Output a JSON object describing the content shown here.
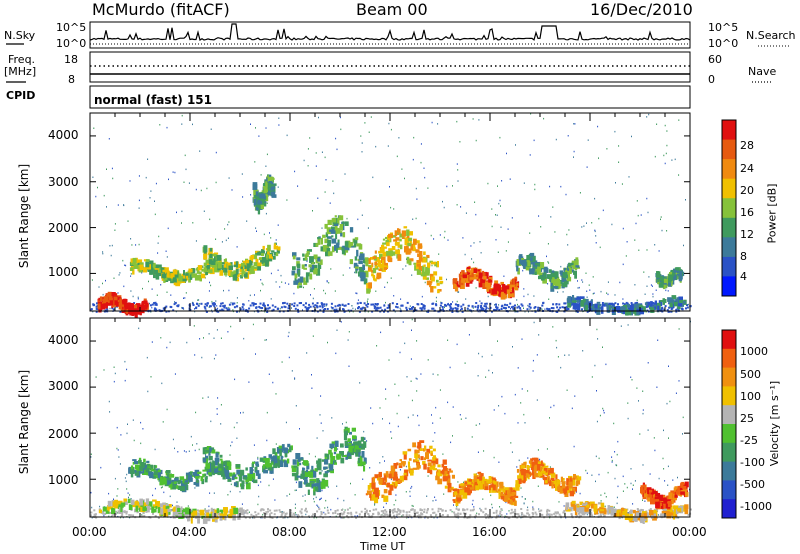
{
  "header": {
    "station": "McMurdo (fitACF)",
    "beam": "Beam 00",
    "date": "16/Dec/2010"
  },
  "aux": {
    "nsky_label": "N.Sky",
    "nsearch_label": "N.Search",
    "noise_ticks_left": [
      "10^5",
      "10^0"
    ],
    "noise_ticks_right": [
      "10^5",
      "10^0"
    ],
    "freq_label_1": "Freq.",
    "freq_label_2": "[MHz]",
    "freq_ticks": [
      "18",
      "8"
    ],
    "nave_label": "Nave",
    "nave_ticks": [
      "60",
      "0"
    ],
    "cpid_label": "CPID",
    "cpid_value": "normal (fast) 151"
  },
  "colors": {
    "power": [
      "#0018ff",
      "#2a52c6",
      "#3c7a9a",
      "#3f9a5e",
      "#86c23a",
      "#f0c000",
      "#f08a10",
      "#e65a10",
      "#e01010"
    ],
    "velocity": [
      "#2020d0",
      "#2a52c6",
      "#3c7a9a",
      "#3f9a5e",
      "#50c030",
      "#b4b4b4",
      "#f0c000",
      "#f09010",
      "#f06010",
      "#e01010"
    ],
    "ground": "#a0a0a0"
  },
  "chart_data": [
    {
      "type": "heatmap",
      "name": "power",
      "ylabel": "Slant Range [km]",
      "ylim": [
        180,
        4500
      ],
      "xlim_hours": [
        0,
        24
      ],
      "y_ticks": [
        "4000",
        "3000",
        "2000",
        "1000"
      ],
      "x_ticks": [
        "00:00",
        "04:00",
        "08:00",
        "12:00",
        "16:00",
        "20:00",
        "00:00"
      ],
      "colorbar_label": "Power [dB]",
      "colorbar_ticks": [
        "28",
        "24",
        "20",
        "16",
        "12",
        "8",
        "4"
      ],
      "echo_regions": [
        {
          "t0": 0.3,
          "t1": 2.2,
          "r0": 200,
          "r1": 550,
          "level": 8
        },
        {
          "t0": 1.5,
          "t1": 5.0,
          "r0": 900,
          "r1": 1300,
          "level": 4
        },
        {
          "t0": 4.5,
          "t1": 7.5,
          "r0": 1000,
          "r1": 1600,
          "level": 4
        },
        {
          "t0": 6.5,
          "t1": 7.3,
          "r0": 2500,
          "r1": 3100,
          "level": 3
        },
        {
          "t0": 8.0,
          "t1": 11.0,
          "r0": 900,
          "r1": 2100,
          "level": 3
        },
        {
          "t0": 11.0,
          "t1": 14.0,
          "r0": 800,
          "r1": 1900,
          "level": 5
        },
        {
          "t0": 14.5,
          "t1": 17.0,
          "r0": 600,
          "r1": 1100,
          "level": 7
        },
        {
          "t0": 17.0,
          "t1": 19.5,
          "r0": 800,
          "r1": 1400,
          "level": 3
        },
        {
          "t0": 19.0,
          "t1": 23.8,
          "r0": 200,
          "r1": 500,
          "level": 2
        },
        {
          "t0": 22.6,
          "t1": 23.6,
          "r0": 800,
          "r1": 1100,
          "level": 3
        }
      ]
    },
    {
      "type": "heatmap",
      "name": "velocity",
      "xlabel": "Time UT",
      "ylabel": "Slant Range [km]",
      "ylim": [
        180,
        4500
      ],
      "xlim_hours": [
        0,
        24
      ],
      "y_ticks": [
        "4000",
        "3000",
        "2000",
        "1000"
      ],
      "x_ticks": [
        "00:00",
        "04:00",
        "08:00",
        "12:00",
        "16:00",
        "20:00",
        "00:00"
      ],
      "colorbar_label": "Velocity [m s⁻¹]",
      "colorbar_ticks": [
        "1000",
        "500",
        "100",
        "25",
        "-25",
        "-100",
        "-500",
        "-1000"
      ],
      "echo_regions": [
        {
          "t0": 0.3,
          "t1": 6.0,
          "r0": 200,
          "r1": 550,
          "level": 5
        },
        {
          "t0": 1.5,
          "t1": 5.0,
          "r0": 900,
          "r1": 1400,
          "level": 3
        },
        {
          "t0": 4.5,
          "t1": 8.0,
          "r0": 1000,
          "r1": 1700,
          "level": 3
        },
        {
          "t0": 8.0,
          "t1": 11.0,
          "r0": 900,
          "r1": 2000,
          "level": 3
        },
        {
          "t0": 11.0,
          "t1": 14.5,
          "r0": 700,
          "r1": 1700,
          "level": 7
        },
        {
          "t0": 14.5,
          "t1": 17.0,
          "r0": 600,
          "r1": 1100,
          "level": 7
        },
        {
          "t0": 17.0,
          "t1": 19.5,
          "r0": 800,
          "r1": 1400,
          "level": 7
        },
        {
          "t0": 19.0,
          "t1": 23.8,
          "r0": 200,
          "r1": 500,
          "level": 6
        },
        {
          "t0": 22.0,
          "t1": 23.8,
          "r0": 500,
          "r1": 900,
          "level": 8
        }
      ]
    }
  ]
}
